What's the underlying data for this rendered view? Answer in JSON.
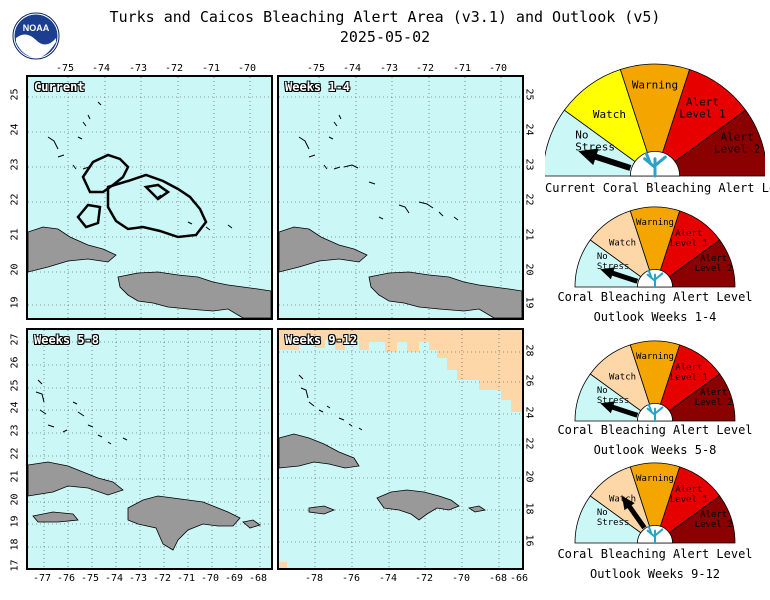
{
  "title": {
    "line1": "Turks and Caicos Bleaching Alert Area (v3.1) and Outlook (v5)",
    "date": "2025-05-02"
  },
  "logo": {
    "text": "NOAA"
  },
  "panels": [
    {
      "id": "current",
      "label": "Current",
      "top_ticks": [
        "-75",
        "-74",
        "-73",
        "-72",
        "-71",
        "-70"
      ],
      "left_ticks": [
        "25",
        "24",
        "23",
        "22",
        "21",
        "20",
        "19"
      ]
    },
    {
      "id": "weeks-1-4",
      "label": "Weeks 1-4",
      "top_ticks": [
        "-75",
        "-74",
        "-73",
        "-72",
        "-71",
        "-70"
      ],
      "right_ticks": [
        "25",
        "24",
        "23",
        "22",
        "21",
        "20",
        "19"
      ]
    },
    {
      "id": "weeks-5-8",
      "label": "Weeks 5-8",
      "left_ticks": [
        "27",
        "26",
        "25",
        "24",
        "23",
        "22",
        "21",
        "20",
        "19",
        "18",
        "17"
      ],
      "bottom_ticks": [
        "-77",
        "-76",
        "-75",
        "-74",
        "-73",
        "-72",
        "-71",
        "-70",
        "-69",
        "-68"
      ]
    },
    {
      "id": "weeks-9-12",
      "label": "Weeks 9-12",
      "right_ticks": [
        "28",
        "26",
        "24",
        "22",
        "20",
        "18",
        "16"
      ],
      "bottom_ticks": [
        "-78",
        "-76",
        "-74",
        "-72",
        "-70",
        "-68",
        "-66"
      ]
    }
  ],
  "legend": {
    "levels": [
      "No Stress",
      "Watch",
      "Warning",
      "Alert Level 1",
      "Alert Level 2"
    ],
    "colors": {
      "no_stress": "#cbf7f7",
      "watch_current": "#ffff00",
      "watch_outlook": "#fdd7a8",
      "warning": "#f5a500",
      "alert1": "#e60000",
      "alert2": "#8b0000",
      "land": "#999999",
      "ocean": "#cbf7f7"
    }
  },
  "gauges": [
    {
      "id": "current",
      "caption1": "Current Coral Bleaching Alert Level",
      "caption2": "",
      "level": "No Stress",
      "watch_label": "Watch",
      "warning_label": "Warning",
      "alert1_label_a": "Alert",
      "alert1_label_b": "Level 1",
      "alert2_label_a": "Alert",
      "alert2_label_b": "Level 2",
      "nostress_a": "No",
      "nostress_b": "Stress"
    },
    {
      "id": "outlook-1-4",
      "caption1": "Coral Bleaching Alert Level",
      "caption2": "Outlook Weeks 1-4",
      "level": "No Stress",
      "watch_label": "Watch",
      "warning_label": "Warning",
      "alert1_label_a": "Alert",
      "alert1_label_b": "Level 1",
      "alert2_label_a": "Alert",
      "alert2_label_b": "Level 2",
      "nostress_a": "No",
      "nostress_b": "Stress"
    },
    {
      "id": "outlook-5-8",
      "caption1": "Coral Bleaching Alert Level",
      "caption2": "Outlook Weeks 5-8",
      "level": "No Stress",
      "watch_label": "Watch",
      "warning_label": "Warning",
      "alert1_label_a": "Alert",
      "alert1_label_b": "Level 1",
      "alert2_label_a": "Alert",
      "alert2_label_b": "Level 2",
      "nostress_a": "No",
      "nostress_b": "Stress"
    },
    {
      "id": "outlook-9-12",
      "caption1": "Coral Bleaching Alert Level",
      "caption2": "Outlook Weeks 9-12",
      "level": "Watch",
      "watch_label": "Watch",
      "warning_label": "Warning",
      "alert1_label_a": "Alert",
      "alert1_label_b": "Level 1",
      "alert2_label_a": "Alert",
      "alert2_label_b": "Level 2",
      "nostress_a": "No",
      "nostress_b": "Stress"
    }
  ]
}
